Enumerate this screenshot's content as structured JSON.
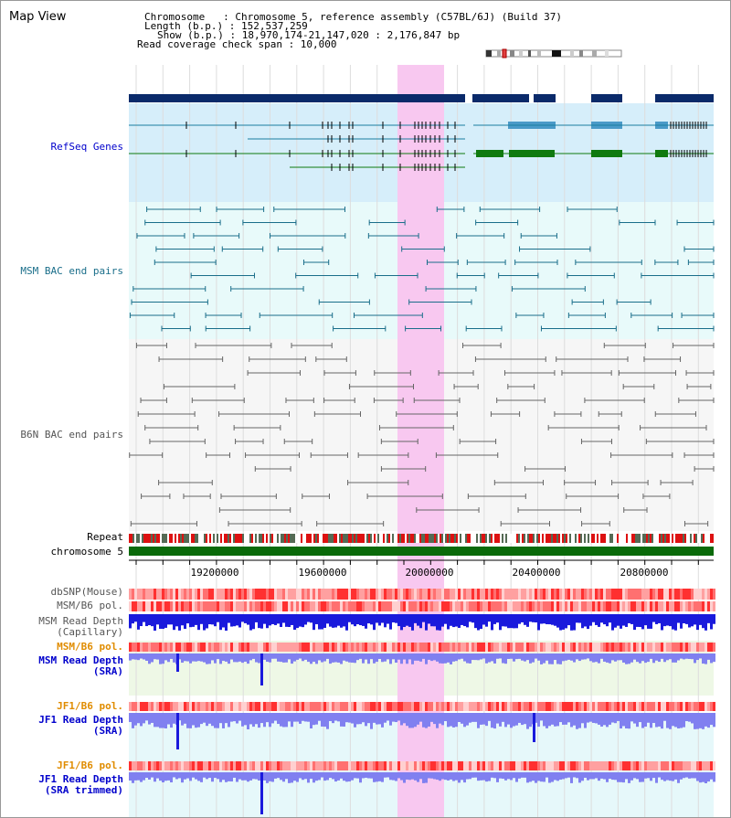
{
  "title": "Map View",
  "info": {
    "chromosome": "Chromosome   : Chromosome 5, reference assembly (C57BL/6J) (Build 37)",
    "length": "Length (b.p.) : 152,537,259",
    "show": "Show (b.p.) : 18,970,174-21,147,020 : 2,176,847 bp",
    "coverage": "Read coverage check span : 10,000"
  },
  "tracks": {
    "refseq": "RefSeq Genes",
    "msm_bac": "MSM BAC end pairs",
    "b6n_bac": "B6N BAC end pairs",
    "repeat": "Repeat",
    "chromosome": "chromosome 5",
    "dbsnp": "dbSNP(Mouse)",
    "msm_b6_pol": "MSM/B6 pol.",
    "msm_depth_cap_1": "MSM Read Depth",
    "msm_depth_cap_2": "(Capillary)",
    "msm_b6_pol_2": "MSM/B6 pol.",
    "msm_depth_sra_1": "MSM Read Depth",
    "msm_depth_sra_2": "(SRA)",
    "jf1_b6_pol": "JF1/B6 pol.",
    "jf1_depth_sra_1": "JF1 Read Depth",
    "jf1_depth_sra_2": "(SRA)",
    "jf1_b6_pol_2": "JF1/B6 pol.",
    "jf1_depth_trim_1": "JF1 Read Depth",
    "jf1_depth_trim_2": "(SRA trimmed)"
  },
  "axis": {
    "ticks": [
      "19200000",
      "19600000",
      "20000000",
      "20400000",
      "20800000"
    ]
  },
  "colors": {
    "gene_dark": "#0a2a6a",
    "gene_teal": "#1a7fa0",
    "gene_green": "#0f7a0f",
    "msm_bac": "#1a6e8a",
    "b6n_bac": "#666666",
    "highlight": "#f8c8f0",
    "label_blue": "#0000cc",
    "label_orange": "#e08c00",
    "label_teal": "#1a6e8a",
    "depth_dark": "#1a1adc",
    "depth_light": "#8080f0"
  }
}
